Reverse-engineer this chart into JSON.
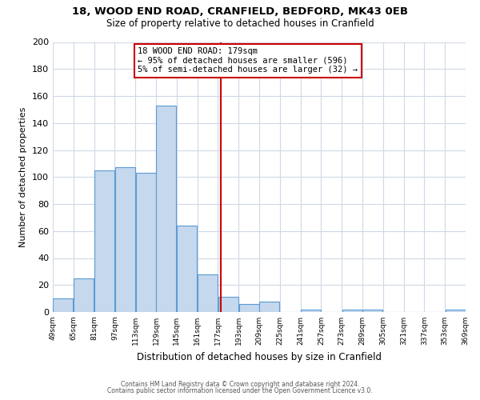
{
  "title1": "18, WOOD END ROAD, CRANFIELD, BEDFORD, MK43 0EB",
  "title2": "Size of property relative to detached houses in Cranfield",
  "xlabel": "Distribution of detached houses by size in Cranfield",
  "ylabel": "Number of detached properties",
  "bar_left_edges": [
    49,
    65,
    81,
    97,
    113,
    129,
    145,
    161,
    177,
    193,
    209,
    225,
    241,
    257,
    273,
    289,
    305,
    321,
    337,
    353
  ],
  "bar_heights": [
    10,
    25,
    105,
    107,
    103,
    153,
    64,
    28,
    11,
    6,
    8,
    0,
    2,
    0,
    2,
    2,
    0,
    0,
    0,
    2
  ],
  "bin_width": 16,
  "bar_color": "#c5d8ed",
  "bar_edge_color": "#5b9bd5",
  "property_line_x": 179,
  "property_line_color": "#cc0000",
  "annotation_text": "18 WOOD END ROAD: 179sqm\n← 95% of detached houses are smaller (596)\n5% of semi-detached houses are larger (32) →",
  "annotation_box_color": "#ffffff",
  "annotation_box_edge_color": "#cc0000",
  "ylim": [
    0,
    200
  ],
  "yticks": [
    0,
    20,
    40,
    60,
    80,
    100,
    120,
    140,
    160,
    180,
    200
  ],
  "tick_labels": [
    "49sqm",
    "65sqm",
    "81sqm",
    "97sqm",
    "113sqm",
    "129sqm",
    "145sqm",
    "161sqm",
    "177sqm",
    "193sqm",
    "209sqm",
    "225sqm",
    "241sqm",
    "257sqm",
    "273sqm",
    "289sqm",
    "305sqm",
    "321sqm",
    "337sqm",
    "353sqm",
    "369sqm"
  ],
  "footer1": "Contains HM Land Registry data © Crown copyright and database right 2024.",
  "footer2": "Contains public sector information licensed under the Open Government Licence v3.0.",
  "bg_color": "#ffffff",
  "grid_color": "#d0d8e8",
  "title1_fontsize": 9.5,
  "title2_fontsize": 8.5,
  "xlabel_fontsize": 8.5,
  "ylabel_fontsize": 8.0,
  "ytick_fontsize": 8.0,
  "xtick_fontsize": 6.5,
  "footer_fontsize": 5.5,
  "annot_fontsize": 7.5
}
